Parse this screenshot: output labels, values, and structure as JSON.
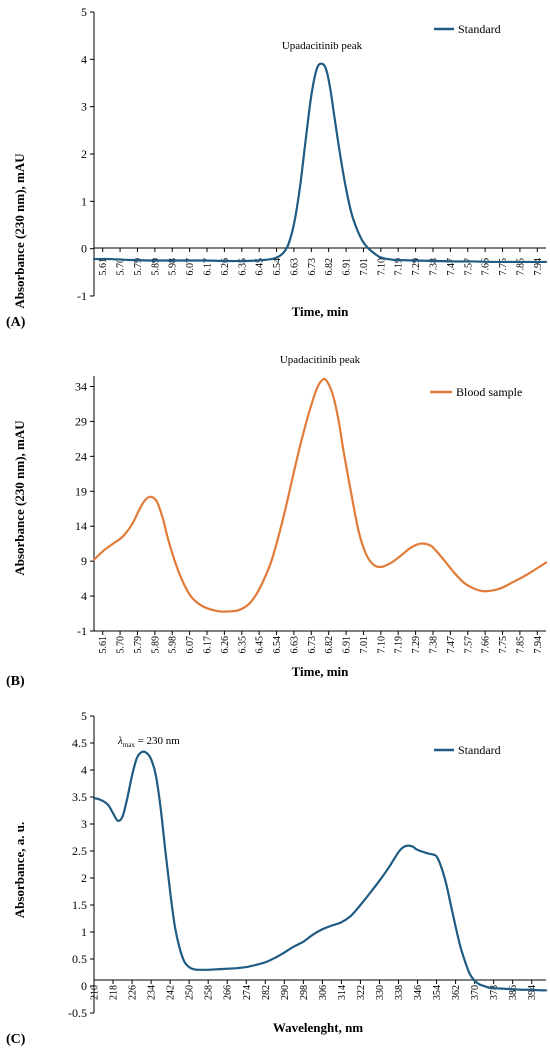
{
  "panels": [
    {
      "letter": "(A)"
    },
    {
      "letter": "(B)"
    },
    {
      "letter": "(C)"
    }
  ],
  "chart_data": [
    {
      "type": "line",
      "panel": "(A)",
      "title": "",
      "xlabel": "Time, min",
      "ylabel": "Absorbance (230 nm), mAU",
      "ylim": [
        -1,
        5
      ],
      "yticks": [
        -1,
        0,
        1,
        2,
        3,
        4,
        5
      ],
      "xlim": [
        5.61,
        7.98
      ],
      "xticks": [
        "5.61",
        "5.70",
        "5.79",
        "5.89",
        "5.98",
        "6.07",
        "6.17",
        "6.26",
        "6.35",
        "6.45",
        "6.54",
        "6.63",
        "6.73",
        "6.82",
        "6.91",
        "7.01",
        "7.10",
        "7.19",
        "7.29",
        "7.38",
        "7.47",
        "7.57",
        "7.66",
        "7.75",
        "7.85",
        "7.94"
      ],
      "legend_position": "top-right",
      "annotation": "Upadacitinib peak",
      "grid": false,
      "zero_line": true,
      "series": [
        {
          "name": "Standard",
          "color": "#1f5b82",
          "x": [
            5.61,
            5.7,
            5.8,
            5.9,
            6.0,
            6.1,
            6.2,
            6.3,
            6.4,
            6.5,
            6.56,
            6.6,
            6.63,
            6.66,
            6.69,
            6.72,
            6.75,
            6.78,
            6.81,
            6.83,
            6.85,
            6.87,
            6.9,
            6.93,
            6.96,
            6.99,
            7.02,
            7.05,
            7.08,
            7.11,
            7.15,
            7.2,
            7.3,
            7.4,
            7.5,
            7.6,
            7.7,
            7.8,
            7.9,
            7.98
          ],
          "y": [
            -0.22,
            -0.22,
            -0.24,
            -0.25,
            -0.25,
            -0.25,
            -0.25,
            -0.26,
            -0.26,
            -0.24,
            -0.2,
            -0.1,
            0.1,
            0.55,
            1.3,
            2.3,
            3.25,
            3.82,
            3.9,
            3.75,
            3.35,
            2.8,
            2.0,
            1.3,
            0.75,
            0.4,
            0.15,
            0.0,
            -0.1,
            -0.18,
            -0.22,
            -0.24,
            -0.25,
            -0.26,
            -0.27,
            -0.27,
            -0.28,
            -0.28,
            -0.28,
            -0.28
          ]
        }
      ]
    },
    {
      "type": "line",
      "panel": "(B)",
      "title": "",
      "xlabel": "Time, min",
      "ylabel": "Absorbance (230 nm), mAU",
      "ylim": [
        -1,
        35.5
      ],
      "yticks": [
        -1,
        4,
        9,
        14,
        19,
        24,
        29,
        34
      ],
      "xlim": [
        5.61,
        7.98
      ],
      "xticks": [
        "5.61",
        "5.70",
        "5.79",
        "5.89",
        "5.98",
        "6.07",
        "6.17",
        "6.26",
        "6.35",
        "6.45",
        "6.54",
        "6.63",
        "6.73",
        "6.82",
        "6.91",
        "7.01",
        "7.10",
        "7.19",
        "7.29",
        "7.38",
        "7.47",
        "7.57",
        "7.66",
        "7.75",
        "7.85",
        "7.94"
      ],
      "legend_position": "top-right",
      "annotation": "Upadacitinib peak",
      "grid": false,
      "series": [
        {
          "name": "Blood sample",
          "color": "#e07b39",
          "x": [
            5.61,
            5.66,
            5.71,
            5.76,
            5.81,
            5.85,
            5.88,
            5.91,
            5.94,
            5.97,
            6.0,
            6.04,
            6.08,
            6.12,
            6.17,
            6.22,
            6.27,
            6.32,
            6.37,
            6.42,
            6.46,
            6.5,
            6.54,
            6.58,
            6.62,
            6.66,
            6.7,
            6.74,
            6.78,
            6.81,
            6.83,
            6.86,
            6.89,
            6.92,
            6.96,
            7.0,
            7.04,
            7.08,
            7.12,
            7.17,
            7.22,
            7.27,
            7.32,
            7.37,
            7.4,
            7.45,
            7.5,
            7.55,
            7.6,
            7.65,
            7.7,
            7.75,
            7.8,
            7.85,
            7.9,
            7.98
          ],
          "y": [
            9.2,
            10.5,
            11.5,
            12.5,
            14.3,
            16.5,
            17.8,
            18.2,
            17.5,
            15.2,
            12.0,
            8.5,
            5.8,
            3.9,
            2.7,
            2.1,
            1.8,
            1.8,
            2.0,
            2.8,
            4.2,
            6.3,
            9.0,
            12.8,
            17.2,
            22.0,
            26.5,
            30.5,
            33.8,
            35.0,
            34.8,
            33.0,
            29.5,
            24.5,
            18.5,
            13.0,
            9.8,
            8.4,
            8.2,
            8.8,
            9.8,
            10.9,
            11.5,
            11.3,
            10.6,
            9.0,
            7.3,
            5.9,
            5.1,
            4.7,
            4.8,
            5.2,
            5.9,
            6.6,
            7.4,
            8.8
          ]
        }
      ]
    },
    {
      "type": "line",
      "panel": "(C)",
      "title": "",
      "xlabel": "Wavelenght, nm",
      "ylabel": "Absorbance, a. u.",
      "ylim": [
        -0.5,
        5
      ],
      "yticks": [
        -0.5,
        0,
        0.5,
        1,
        1.5,
        2,
        2.5,
        3,
        3.5,
        4,
        4.5,
        5
      ],
      "ytick_labels": [
        "-0.5",
        "0",
        "0.5",
        "1",
        "1.5",
        "2",
        "2.5",
        "3",
        "3.5",
        "4",
        "4.5",
        "5"
      ],
      "xlim": [
        210,
        400
      ],
      "xticks": [
        210,
        218,
        226,
        234,
        242,
        250,
        258,
        266,
        274,
        282,
        290,
        298,
        306,
        314,
        322,
        330,
        338,
        346,
        354,
        362,
        370,
        378,
        386,
        394
      ],
      "legend_position": "top-right",
      "annotation": "λmax = 230 nm",
      "annotation_parts": {
        "lambda": "λ",
        "sub": "max",
        "rest": " = 230 nm"
      },
      "grid": false,
      "zero_line": true,
      "series": [
        {
          "name": "Standard",
          "color": "#1f5b82",
          "x": [
            210,
            212,
            214,
            216,
            218,
            220,
            222,
            224,
            226,
            228,
            230,
            232,
            234,
            236,
            238,
            240,
            242,
            244,
            246,
            248,
            250,
            252,
            254,
            256,
            258,
            262,
            266,
            270,
            274,
            278,
            282,
            286,
            290,
            294,
            298,
            302,
            306,
            310,
            314,
            318,
            322,
            326,
            330,
            334,
            338,
            340,
            342,
            344,
            346,
            350,
            352,
            354,
            356,
            358,
            360,
            362,
            364,
            366,
            368,
            370,
            372,
            374,
            376,
            378,
            382,
            386,
            390,
            394,
            398,
            400
          ],
          "y": [
            3.48,
            3.46,
            3.42,
            3.35,
            3.2,
            3.06,
            3.14,
            3.48,
            3.9,
            4.22,
            4.33,
            4.32,
            4.2,
            3.9,
            3.3,
            2.5,
            1.75,
            1.1,
            0.7,
            0.45,
            0.35,
            0.31,
            0.3,
            0.3,
            0.3,
            0.31,
            0.32,
            0.33,
            0.35,
            0.39,
            0.44,
            0.52,
            0.62,
            0.73,
            0.82,
            0.95,
            1.05,
            1.12,
            1.18,
            1.3,
            1.5,
            1.72,
            1.95,
            2.2,
            2.48,
            2.57,
            2.6,
            2.58,
            2.52,
            2.46,
            2.44,
            2.4,
            2.2,
            1.9,
            1.5,
            1.1,
            0.73,
            0.45,
            0.22,
            0.1,
            0.03,
            0.0,
            -0.03,
            -0.04,
            -0.05,
            -0.06,
            -0.07,
            -0.07,
            -0.08,
            -0.08
          ]
        }
      ]
    }
  ]
}
